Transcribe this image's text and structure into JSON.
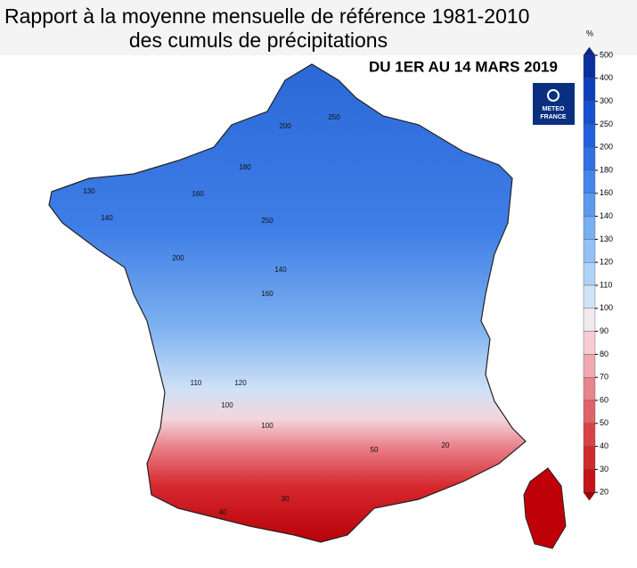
{
  "header": {
    "title_line1": "Rapport à la moyenne mensuelle de référence 1981-2010",
    "title_line2": "des cumuls de précipitations"
  },
  "map": {
    "date_label": "DU 1ER AU 14 MARS 2019",
    "contour_labels": [
      "250",
      "200",
      "180",
      "160",
      "140",
      "130",
      "250",
      "200",
      "160",
      "140",
      "100",
      "120",
      "110",
      "100",
      "50",
      "40",
      "30",
      "20"
    ]
  },
  "logo": {
    "line1": "METEO",
    "line2": "FRANCE"
  },
  "legend": {
    "unit": "%",
    "ticks": [
      500,
      400,
      300,
      250,
      200,
      180,
      160,
      140,
      130,
      120,
      110,
      100,
      90,
      80,
      70,
      60,
      50,
      40,
      30,
      20
    ],
    "colors": [
      "#0a2fa0",
      "#0d3fbd",
      "#1550d0",
      "#2160dc",
      "#2f70e4",
      "#4585ea",
      "#5d9aef",
      "#78aef2",
      "#93c1f5",
      "#afd2f7",
      "#d0e3f7",
      "#f0e9ee",
      "#f5cdd2",
      "#f0a9b0",
      "#e8858c",
      "#e0636a",
      "#d84248",
      "#cf2a2e",
      "#c41218"
    ],
    "over_color": "#072590",
    "under_color": "#a00008"
  }
}
